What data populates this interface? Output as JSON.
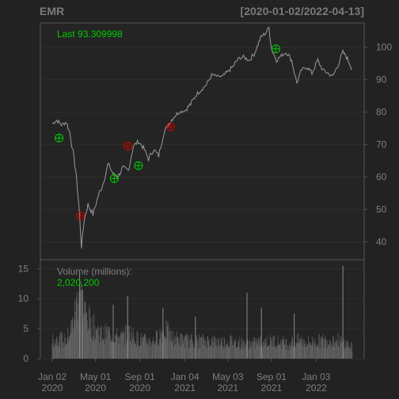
{
  "chart_data": {
    "type": "line",
    "title": "EMR",
    "date_range_label": "[2020-01-02/2022-04-13]",
    "last_label": "Last 93.309998",
    "volume_label": "Volume (millions):",
    "volume_last": "2,020,200",
    "price_axis": {
      "ticks": [
        40,
        50,
        60,
        70,
        80,
        90,
        100
      ],
      "range": [
        34.5,
        107.5
      ]
    },
    "volume_axis": {
      "ticks": [
        0,
        5,
        10,
        15
      ],
      "range": [
        0,
        16.5
      ]
    },
    "x_ticks": [
      {
        "month": "Jan 02",
        "year": "2020",
        "date": "2020-01-02"
      },
      {
        "month": "May 01",
        "year": "2020",
        "date": "2020-05-01"
      },
      {
        "month": "Sep 01",
        "year": "2020",
        "date": "2020-09-01"
      },
      {
        "month": "Jan 04",
        "year": "2021",
        "date": "2021-01-04"
      },
      {
        "month": "May 03",
        "year": "2021",
        "date": "2021-05-03"
      },
      {
        "month": "Sep 01",
        "year": "2021",
        "date": "2021-09-01"
      },
      {
        "month": "Jan 03",
        "year": "2022",
        "date": "2022-01-03"
      }
    ],
    "price_series": {
      "name": "EMR",
      "points": [
        [
          "2020-01-02",
          76.5
        ],
        [
          "2020-01-15",
          77.5
        ],
        [
          "2020-01-28",
          76.0
        ],
        [
          "2020-02-10",
          77.0
        ],
        [
          "2020-02-20",
          73.5
        ],
        [
          "2020-03-02",
          66.0
        ],
        [
          "2020-03-09",
          60.0
        ],
        [
          "2020-03-16",
          51.0
        ],
        [
          "2020-03-23",
          38.5
        ],
        [
          "2020-03-31",
          47.0
        ],
        [
          "2020-04-10",
          51.5
        ],
        [
          "2020-04-24",
          48.5
        ],
        [
          "2020-05-08",
          54.0
        ],
        [
          "2020-05-22",
          58.0
        ],
        [
          "2020-06-05",
          64.0
        ],
        [
          "2020-06-19",
          61.0
        ],
        [
          "2020-07-02",
          60.0
        ],
        [
          "2020-07-16",
          63.0
        ],
        [
          "2020-07-31",
          62.0
        ],
        [
          "2020-08-14",
          69.5
        ],
        [
          "2020-08-28",
          71.0
        ],
        [
          "2020-09-11",
          69.0
        ],
        [
          "2020-09-25",
          65.5
        ],
        [
          "2020-10-09",
          68.5
        ],
        [
          "2020-10-23",
          66.5
        ],
        [
          "2020-11-06",
          73.5
        ],
        [
          "2020-11-20",
          76.5
        ],
        [
          "2020-12-04",
          78.5
        ],
        [
          "2020-12-18",
          80.0
        ],
        [
          "2021-01-04",
          80.5
        ],
        [
          "2021-01-20",
          82.5
        ],
        [
          "2021-02-05",
          85.5
        ],
        [
          "2021-02-19",
          87.0
        ],
        [
          "2021-03-05",
          88.5
        ],
        [
          "2021-03-19",
          91.5
        ],
        [
          "2021-04-05",
          91.0
        ],
        [
          "2021-04-19",
          91.0
        ],
        [
          "2021-05-03",
          92.5
        ],
        [
          "2021-05-17",
          94.0
        ],
        [
          "2021-06-01",
          96.5
        ],
        [
          "2021-06-15",
          97.0
        ],
        [
          "2021-07-01",
          96.0
        ],
        [
          "2021-07-15",
          98.0
        ],
        [
          "2021-08-02",
          103.0
        ],
        [
          "2021-08-16",
          104.5
        ],
        [
          "2021-08-25",
          106.0
        ],
        [
          "2021-09-01",
          99.5
        ],
        [
          "2021-09-15",
          96.0
        ],
        [
          "2021-09-29",
          97.5
        ],
        [
          "2021-10-13",
          98.5
        ],
        [
          "2021-10-27",
          96.0
        ],
        [
          "2021-11-10",
          89.0
        ],
        [
          "2021-11-24",
          93.0
        ],
        [
          "2021-12-08",
          94.0
        ],
        [
          "2021-12-22",
          92.0
        ],
        [
          "2022-01-07",
          96.0
        ],
        [
          "2022-01-21",
          93.0
        ],
        [
          "2022-02-04",
          92.0
        ],
        [
          "2022-02-18",
          91.0
        ],
        [
          "2022-03-04",
          94.5
        ],
        [
          "2022-03-18",
          98.5
        ],
        [
          "2022-03-28",
          97.0
        ],
        [
          "2022-04-13",
          93.3
        ]
      ]
    },
    "markers": [
      {
        "date": "2020-01-21",
        "price": 72.0,
        "signal": "buy",
        "color": "#00cc00"
      },
      {
        "date": "2020-03-20",
        "price": 48.0,
        "signal": "sell",
        "color": "#cc0000"
      },
      {
        "date": "2020-06-22",
        "price": 59.5,
        "signal": "buy",
        "color": "#00cc00"
      },
      {
        "date": "2020-07-30",
        "price": 69.5,
        "signal": "sell",
        "color": "#cc0000"
      },
      {
        "date": "2020-08-28",
        "price": 63.5,
        "signal": "buy",
        "color": "#00cc00"
      },
      {
        "date": "2020-11-25",
        "price": 75.5,
        "signal": "sell",
        "color": "#cc0000"
      },
      {
        "date": "2021-09-13",
        "price": 99.5,
        "signal": "buy",
        "color": "#00cc00"
      }
    ],
    "volume_series": {
      "name": "Volume (millions)",
      "points": [
        [
          "2020-01-02",
          3.0
        ],
        [
          "2020-01-20",
          3.5
        ],
        [
          "2020-02-10",
          3.0
        ],
        [
          "2020-02-28",
          6.0
        ],
        [
          "2020-03-09",
          9.0
        ],
        [
          "2020-03-17",
          12.5
        ],
        [
          "2020-03-24",
          9.5
        ],
        [
          "2020-04-07",
          7.0
        ],
        [
          "2020-04-21",
          5.5
        ],
        [
          "2020-05-05",
          5.0
        ],
        [
          "2020-05-20",
          4.0
        ],
        [
          "2020-06-05",
          4.5
        ],
        [
          "2020-06-20",
          4.0
        ],
        [
          "2020-07-10",
          3.5
        ],
        [
          "2020-08-04",
          4.5
        ],
        [
          "2020-08-20",
          3.5
        ],
        [
          "2020-09-15",
          3.0
        ],
        [
          "2020-10-10",
          3.0
        ],
        [
          "2020-11-09",
          5.0
        ],
        [
          "2020-11-30",
          3.5
        ],
        [
          "2021-01-15",
          3.0
        ],
        [
          "2021-02-15",
          3.0
        ],
        [
          "2021-03-15",
          3.0
        ],
        [
          "2021-04-15",
          2.8
        ],
        [
          "2021-05-15",
          3.0
        ],
        [
          "2021-06-15",
          2.6
        ],
        [
          "2021-07-15",
          2.6
        ],
        [
          "2021-08-15",
          3.0
        ],
        [
          "2021-09-15",
          3.0
        ],
        [
          "2021-10-15",
          2.6
        ],
        [
          "2021-11-15",
          3.0
        ],
        [
          "2021-12-15",
          2.8
        ],
        [
          "2022-01-15",
          3.0
        ],
        [
          "2022-02-15",
          3.2
        ],
        [
          "2022-03-10",
          3.0
        ],
        [
          "2022-04-13",
          2.0
        ]
      ],
      "spikes": [
        [
          "2020-03-18",
          14.5
        ],
        [
          "2020-03-26",
          11.5
        ],
        [
          "2020-06-19",
          9.0
        ],
        [
          "2020-07-29",
          10.5
        ],
        [
          "2020-11-04",
          8.5
        ],
        [
          "2021-02-02",
          7.0
        ],
        [
          "2021-06-25",
          11.0
        ],
        [
          "2021-08-04",
          8.5
        ],
        [
          "2021-11-03",
          7.5
        ],
        [
          "2022-03-18",
          15.5
        ]
      ]
    }
  }
}
